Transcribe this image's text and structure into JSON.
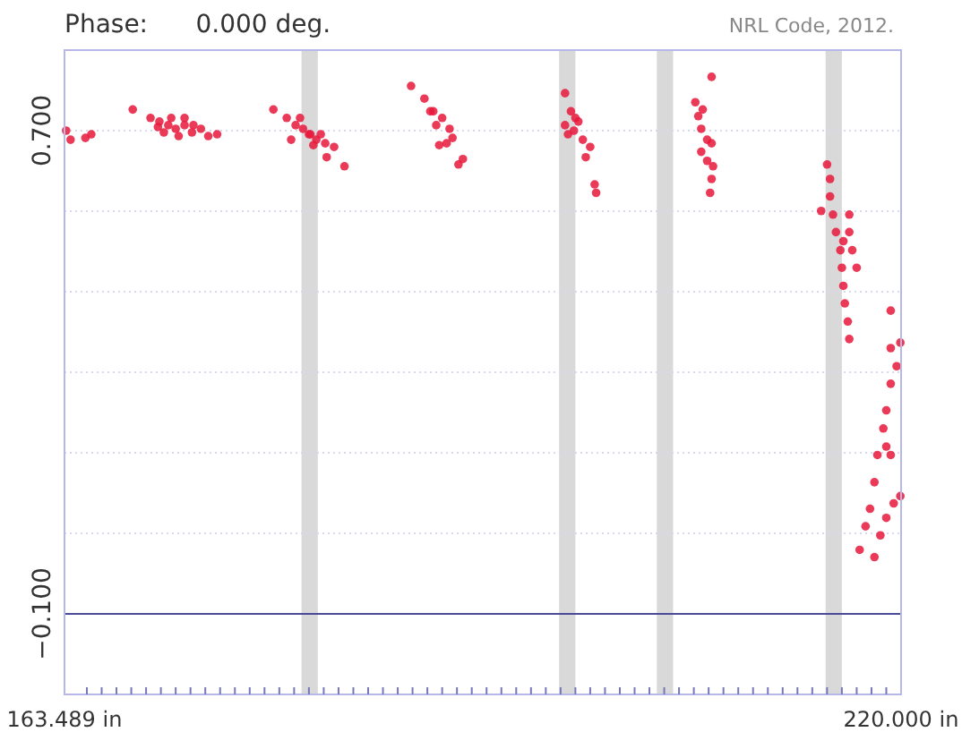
{
  "chart_data": {
    "type": "scatter",
    "title": "Phase:      0.000 deg.",
    "annotations": [
      "NRL Code, 2012."
    ],
    "xlim": [
      163.489,
      220.0
    ],
    "xticks": [
      {
        "value": 163.489,
        "label": "163.489 in"
      },
      {
        "value": 165,
        "label": null
      },
      {
        "value": 166,
        "label": null
      },
      {
        "value": 167,
        "label": null
      },
      {
        "value": 168,
        "label": null
      },
      {
        "value": 169,
        "label": null
      },
      {
        "value": 170,
        "label": null
      },
      {
        "value": 171,
        "label": null
      },
      {
        "value": 172,
        "label": null
      },
      {
        "value": 173,
        "label": null
      },
      {
        "value": 174,
        "label": null
      },
      {
        "value": 175,
        "label": null
      },
      {
        "value": 176,
        "label": null
      },
      {
        "value": 177,
        "label": null
      },
      {
        "value": 178,
        "label": null
      },
      {
        "value": 179,
        "label": null
      },
      {
        "value": 180,
        "label": null
      },
      {
        "value": 181,
        "label": null
      },
      {
        "value": 182,
        "label": null
      },
      {
        "value": 183,
        "label": null
      },
      {
        "value": 184,
        "label": null
      },
      {
        "value": 185,
        "label": null
      },
      {
        "value": 186,
        "label": null
      },
      {
        "value": 187,
        "label": null
      },
      {
        "value": 188,
        "label": null
      },
      {
        "value": 189,
        "label": null
      },
      {
        "value": 190,
        "label": null
      },
      {
        "value": 191,
        "label": null
      },
      {
        "value": 192,
        "label": null
      },
      {
        "value": 193,
        "label": null
      },
      {
        "value": 194,
        "label": null
      },
      {
        "value": 195,
        "label": null
      },
      {
        "value": 196,
        "label": null
      },
      {
        "value": 197,
        "label": null
      },
      {
        "value": 198,
        "label": null
      },
      {
        "value": 199,
        "label": null
      },
      {
        "value": 200,
        "label": null
      },
      {
        "value": 201,
        "label": null
      },
      {
        "value": 202,
        "label": null
      },
      {
        "value": 203,
        "label": null
      },
      {
        "value": 204,
        "label": null
      },
      {
        "value": 205,
        "label": null
      },
      {
        "value": 206,
        "label": null
      },
      {
        "value": 207,
        "label": null
      },
      {
        "value": 208,
        "label": null
      },
      {
        "value": 209,
        "label": null
      },
      {
        "value": 210,
        "label": null
      },
      {
        "value": 211,
        "label": null
      },
      {
        "value": 212,
        "label": null
      },
      {
        "value": 213,
        "label": null
      },
      {
        "value": 214,
        "label": null
      },
      {
        "value": 215,
        "label": null
      },
      {
        "value": 216,
        "label": null
      },
      {
        "value": 217,
        "label": null
      },
      {
        "value": 218,
        "label": null
      },
      {
        "value": 219,
        "label": null
      },
      {
        "value": 220.0,
        "label": "220.000 in"
      }
    ],
    "ylim": [
      -0.2333,
      0.8333
    ],
    "yticks": [
      {
        "value": 0.8333,
        "label": null
      },
      {
        "value": 0.7,
        "label": "0.700"
      },
      {
        "value": 0.5667,
        "label": null
      },
      {
        "value": 0.4333,
        "label": null
      },
      {
        "value": 0.3,
        "label": null
      },
      {
        "value": 0.1667,
        "label": null
      },
      {
        "value": 0.0333,
        "label": null
      },
      {
        "value": -0.1,
        "label": "−0.100"
      },
      {
        "value": -0.2333,
        "label": null
      }
    ],
    "grid": "y",
    "marker": "circle",
    "ref_lines": [
      {
        "axis": "y",
        "value": -0.1,
        "color": "#4a4a9a"
      }
    ],
    "bands": [
      {
        "axis": "x",
        "from": 179.5,
        "to": 180.6,
        "color": "#d9d9d9"
      },
      {
        "axis": "x",
        "from": 196.9,
        "to": 198.0,
        "color": "#d9d9d9"
      },
      {
        "axis": "x",
        "from": 203.5,
        "to": 204.6,
        "color": "#d9d9d9"
      },
      {
        "axis": "x",
        "from": 214.9,
        "to": 216.0,
        "color": "#d9d9d9"
      }
    ],
    "series": [
      {
        "color": "#e8173a",
        "x": [
          163.6,
          163.9,
          164.9,
          165.3,
          168.1,
          169.3,
          169.9,
          170.5,
          171.0,
          171.6,
          172.1,
          172.7,
          173.2,
          173.8,
          169.8,
          170.7,
          171.6,
          170.2,
          171.2,
          172.2,
          177.6,
          178.5,
          179.1,
          179.6,
          180.1,
          180.5,
          181.1,
          181.7,
          181.2,
          182.4,
          178.8,
          180.0,
          179.4,
          180.8,
          180.3,
          186.9,
          187.8,
          188.4,
          189.0,
          189.5,
          189.7,
          189.3,
          188.6,
          188.2,
          190.1,
          190.4,
          188.8,
          197.3,
          197.7,
          197.3,
          197.9,
          198.5,
          199.0,
          198.7,
          199.3,
          199.4,
          198.0,
          198.2,
          197.5,
          207.2,
          206.1,
          206.3,
          206.5,
          206.9,
          207.2,
          206.5,
          206.9,
          207.3,
          207.2,
          207.1,
          206.6,
          215.0,
          215.2,
          215.2,
          214.6,
          215.4,
          215.6,
          215.9,
          216.0,
          216.1,
          216.2,
          216.4,
          216.5,
          216.5,
          216.7,
          217.0,
          216.5,
          216.1,
          217.2,
          217.6,
          217.9,
          218.2,
          218.4,
          218.8,
          219.0,
          219.3,
          219.7,
          219.3,
          219.95,
          218.2,
          218.6,
          219.0,
          219.5,
          219.95,
          219.0,
          219.3,
          219.3
        ],
        "values": [
          0.7,
          0.685,
          0.688,
          0.694,
          0.735,
          0.721,
          0.715,
          0.709,
          0.703,
          0.709,
          0.697,
          0.703,
          0.691,
          0.694,
          0.706,
          0.721,
          0.721,
          0.697,
          0.691,
          0.709,
          0.735,
          0.721,
          0.709,
          0.703,
          0.694,
          0.685,
          0.679,
          0.673,
          0.656,
          0.641,
          0.685,
          0.694,
          0.721,
          0.694,
          0.676,
          0.774,
          0.753,
          0.732,
          0.721,
          0.703,
          0.688,
          0.679,
          0.709,
          0.732,
          0.644,
          0.653,
          0.676,
          0.762,
          0.732,
          0.709,
          0.7,
          0.685,
          0.673,
          0.656,
          0.611,
          0.597,
          0.721,
          0.715,
          0.694,
          0.789,
          0.747,
          0.724,
          0.703,
          0.685,
          0.679,
          0.665,
          0.65,
          0.641,
          0.62,
          0.597,
          0.735,
          0.644,
          0.62,
          0.591,
          0.567,
          0.561,
          0.532,
          0.502,
          0.473,
          0.443,
          0.414,
          0.384,
          0.355,
          0.532,
          0.502,
          0.473,
          0.561,
          0.517,
          0.006,
          0.045,
          0.074,
          0.118,
          0.163,
          0.207,
          0.237,
          0.281,
          0.31,
          0.34,
          0.349,
          -0.006,
          0.03,
          0.059,
          0.083,
          0.095,
          0.177,
          0.163,
          0.402
        ]
      }
    ]
  }
}
